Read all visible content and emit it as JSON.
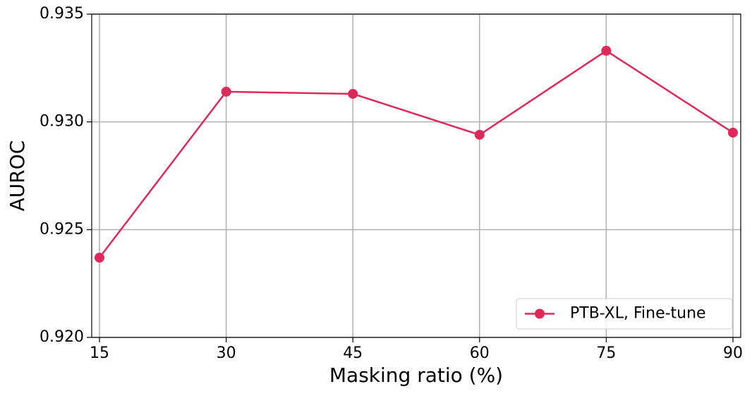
{
  "chart_data": {
    "type": "line",
    "xlabel": "Masking ratio (%)",
    "ylabel": "AUROC",
    "x": [
      15,
      30,
      45,
      60,
      75,
      90
    ],
    "series": [
      {
        "name": "PTB-XL, Fine-tune",
        "color": "#e0295a",
        "values": [
          0.9237,
          0.9314,
          0.9313,
          0.9294,
          0.9333,
          0.9295
        ]
      }
    ],
    "xlim": [
      14.08,
      90.92
    ],
    "xticks": [
      15,
      30,
      45,
      60,
      75,
      90
    ],
    "ylim": [
      0.92,
      0.935
    ],
    "yticks": [
      {
        "value": 0.92,
        "label": "0.920"
      },
      0.925,
      {
        "value": 0.93,
        "label": "0.930"
      },
      0.935
    ],
    "grid": true,
    "legend": "lower right"
  }
}
